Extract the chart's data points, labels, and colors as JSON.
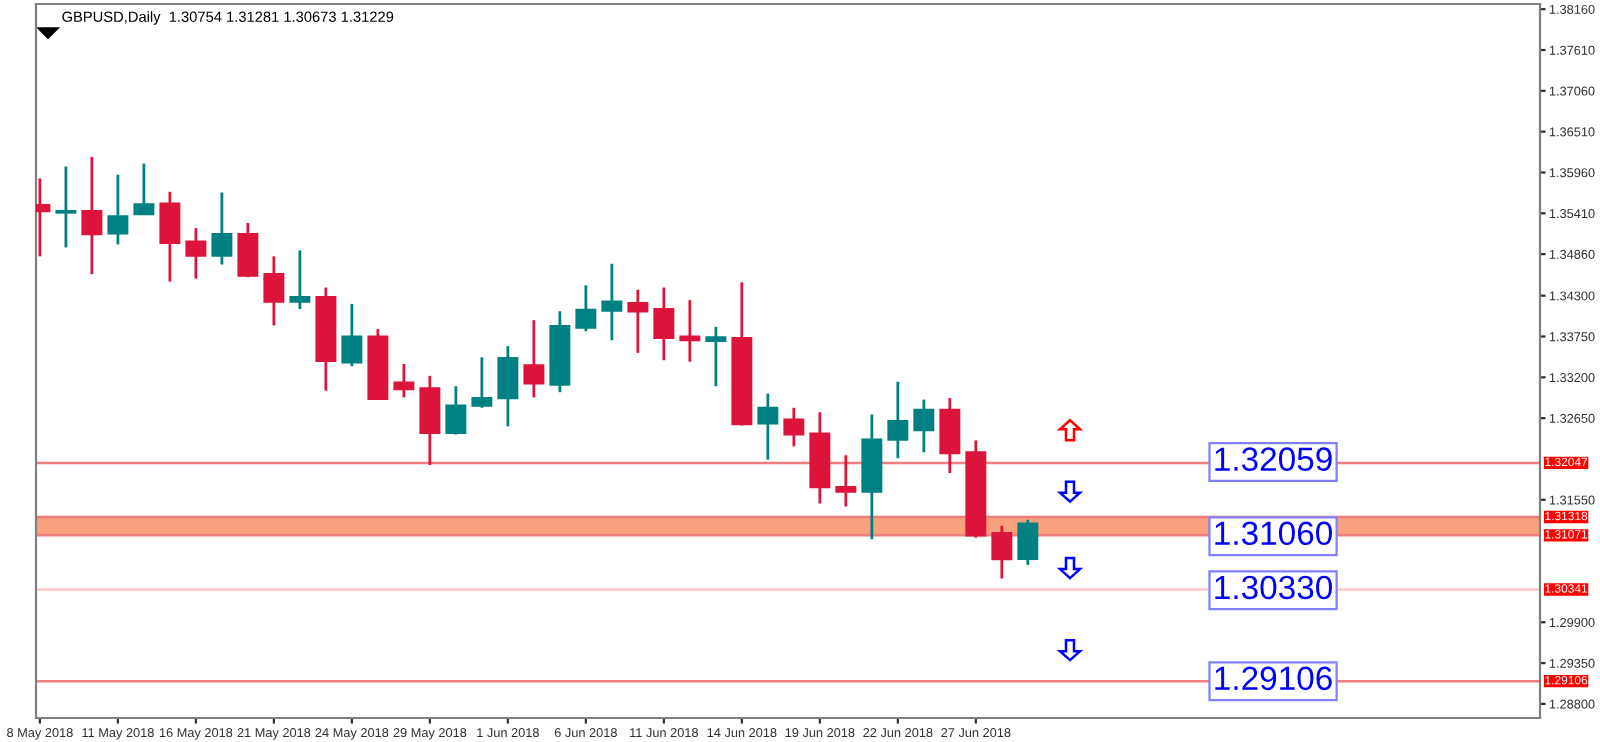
{
  "chart_data": {
    "type": "candlestick",
    "title": "GBPUSD,Daily  1.30754 1.31281 1.30673 1.31229",
    "categories": [
      "8 May 2018",
      null,
      null,
      "11 May 2018",
      null,
      null,
      "16 May 2018",
      null,
      null,
      "21 May 2018",
      null,
      null,
      "24 May 2018",
      null,
      null,
      "29 May 2018",
      null,
      null,
      "1 Jun 2018",
      null,
      null,
      "6 Jun 2018",
      null,
      null,
      "11 Jun 2018",
      null,
      null,
      "14 Jun 2018",
      null,
      null,
      "19 Jun 2018",
      null,
      null,
      "22 Jun 2018",
      null,
      null,
      "27 Jun 2018",
      null,
      null,
      null,
      null,
      null,
      null,
      null,
      null,
      null,
      null,
      null,
      null,
      null,
      null,
      null,
      null,
      null,
      null,
      null,
      null,
      null
    ],
    "ohlc": [
      [
        1.3552,
        1.3588,
        1.3483,
        1.3544
      ],
      [
        1.3542,
        1.3604,
        1.3495,
        1.3544
      ],
      [
        1.3544,
        1.3617,
        1.3459,
        1.3513
      ],
      [
        1.3514,
        1.3593,
        1.3499,
        1.3537
      ],
      [
        1.354,
        1.3608,
        1.3539,
        1.3553
      ],
      [
        1.3554,
        1.357,
        1.3449,
        1.3501
      ],
      [
        1.3503,
        1.3521,
        1.3453,
        1.3484
      ],
      [
        1.3484,
        1.3569,
        1.3472,
        1.3513
      ],
      [
        1.3513,
        1.3528,
        1.3455,
        1.3457
      ],
      [
        1.3459,
        1.3483,
        1.339,
        1.3422
      ],
      [
        1.3422,
        1.3491,
        1.3412,
        1.3428
      ],
      [
        1.3428,
        1.3441,
        1.3302,
        1.3342
      ],
      [
        1.334,
        1.3419,
        1.3335,
        1.3375
      ],
      [
        1.3375,
        1.3385,
        1.329,
        1.3291
      ],
      [
        1.3313,
        1.3338,
        1.3293,
        1.3304
      ],
      [
        1.3305,
        1.3322,
        1.3202,
        1.3245
      ],
      [
        1.3245,
        1.3308,
        1.3243,
        1.3282
      ],
      [
        1.3282,
        1.3347,
        1.3279,
        1.3292
      ],
      [
        1.3292,
        1.3362,
        1.3254,
        1.3346
      ],
      [
        1.3336,
        1.3397,
        1.3293,
        1.3312
      ],
      [
        1.331,
        1.3409,
        1.33,
        1.3389
      ],
      [
        1.3387,
        1.3444,
        1.3382,
        1.3411
      ],
      [
        1.341,
        1.3473,
        1.337,
        1.3422
      ],
      [
        1.342,
        1.3438,
        1.3353,
        1.3409
      ],
      [
        1.3412,
        1.3441,
        1.3343,
        1.3373
      ],
      [
        1.3375,
        1.3424,
        1.3341,
        1.337
      ],
      [
        1.3369,
        1.3388,
        1.3308,
        1.3374
      ],
      [
        1.3373,
        1.3448,
        1.3255,
        1.3257
      ],
      [
        1.3258,
        1.3298,
        1.3209,
        1.3279
      ],
      [
        1.3263,
        1.3279,
        1.3227,
        1.3243
      ],
      [
        1.3244,
        1.3273,
        1.315,
        1.3172
      ],
      [
        1.3172,
        1.3215,
        1.3146,
        1.3166
      ],
      [
        1.3166,
        1.327,
        1.3102,
        1.3236
      ],
      [
        1.3236,
        1.3314,
        1.3211,
        1.3261
      ],
      [
        1.3249,
        1.329,
        1.3219,
        1.3276
      ],
      [
        1.3276,
        1.3292,
        1.3191,
        1.3218
      ],
      [
        1.3219,
        1.3235,
        1.3104,
        1.3107
      ],
      [
        1.311,
        1.312,
        1.3049,
        1.3075
      ],
      [
        1.30754,
        1.31281,
        1.30673,
        1.31229
      ],
      null,
      null,
      null,
      null,
      null,
      null,
      null,
      null,
      null,
      null,
      null,
      null,
      null,
      null,
      null,
      null,
      null,
      null,
      null
    ],
    "colors": [
      "#dc143c",
      "#008080",
      "#dc143c",
      "#008080",
      "#008080",
      "#dc143c",
      "#dc143c",
      "#008080",
      "#dc143c",
      "#dc143c",
      "#008080",
      "#dc143c",
      "#008080",
      "#dc143c",
      "#dc143c",
      "#dc143c",
      "#008080",
      "#008080",
      "#008080",
      "#dc143c",
      "#008080",
      "#008080",
      "#008080",
      "#dc143c",
      "#dc143c",
      "#dc143c",
      "#008080",
      "#dc143c",
      "#008080",
      "#dc143c",
      "#dc143c",
      "#dc143c",
      "#008080",
      "#008080",
      "#008080",
      "#dc143c",
      "#dc143c",
      "#dc143c",
      "#008080",
      null,
      null,
      null,
      null,
      null,
      null,
      null,
      null,
      null,
      null,
      null,
      null,
      null,
      null,
      null,
      null,
      null,
      null,
      null
    ],
    "ylim": [
      1.2861,
      1.3823
    ],
    "yticks": [
      {
        "value": 1.3816,
        "label": "1.38160"
      },
      {
        "value": 1.3761,
        "label": "1.37610"
      },
      {
        "value": 1.3706,
        "label": "1.37060"
      },
      {
        "value": 1.3651,
        "label": "1.36510"
      },
      {
        "value": 1.3596,
        "label": "1.35960"
      },
      {
        "value": 1.3541,
        "label": "1.35410"
      },
      {
        "value": 1.3486,
        "label": "1.34860"
      },
      {
        "value": 1.343,
        "label": "1.34300"
      },
      {
        "value": 1.3375,
        "label": "1.33750"
      },
      {
        "value": 1.332,
        "label": "1.33200"
      },
      {
        "value": 1.3265,
        "label": "1.32650"
      },
      {
        "value": 1.3155,
        "label": "1.31550"
      },
      {
        "value": 1.299,
        "label": "1.29900"
      },
      {
        "value": 1.2935,
        "label": "1.29350"
      },
      {
        "value": 1.288,
        "label": "1.28800"
      }
    ],
    "ref_lines": [
      {
        "axis": "y",
        "value": 1.32047,
        "label": "1.32047",
        "color": "#f08080"
      },
      {
        "axis": "y",
        "value": 1.31318,
        "label": "1.31318",
        "color": "#f08080"
      },
      {
        "axis": "y",
        "value": 1.31071,
        "label": "1.31071",
        "color": "#f08080"
      },
      {
        "axis": "y",
        "value": 1.30341,
        "label": "1.30341",
        "color": "#ffc8c8"
      },
      {
        "axis": "y",
        "value": 1.29106,
        "label": "1.29106",
        "color": "#f08080"
      }
    ],
    "bands": [
      {
        "axis": "y",
        "from": 1.31071,
        "to": 1.31318,
        "color": "#f9a07f"
      }
    ],
    "annotations": [
      {
        "text": "1.32059",
        "y": 1.32059
      },
      {
        "text": "1.31060",
        "y": 1.3106
      },
      {
        "text": "1.30330",
        "y": 1.3033
      },
      {
        "text": "1.29106",
        "y": 1.29106
      }
    ],
    "grid": false
  }
}
